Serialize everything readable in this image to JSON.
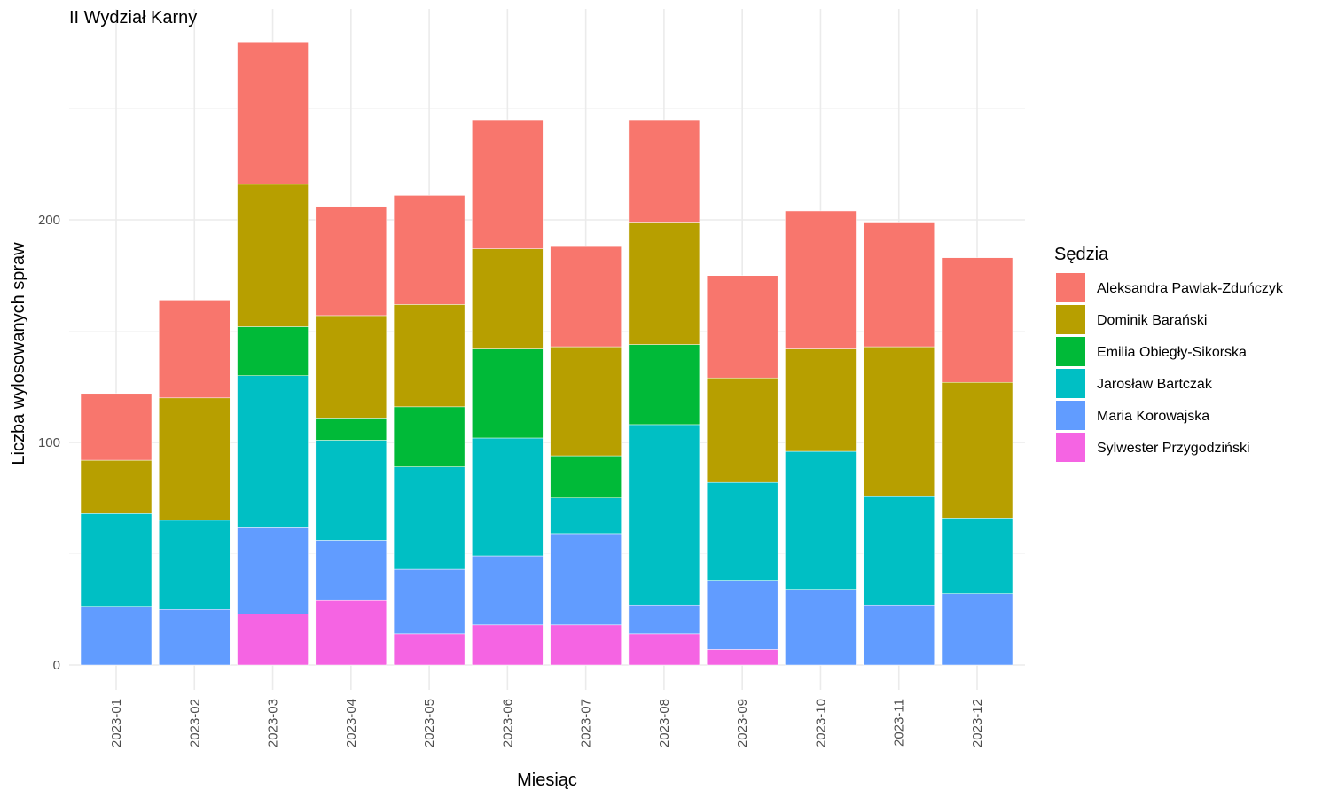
{
  "chart_data": {
    "type": "bar",
    "stacked": true,
    "title": "II Wydział Karny",
    "xlabel": "Miesiąc",
    "ylabel": "Liczba wylosowanych spraw",
    "ylim": [
      0,
      290
    ],
    "yticks": [
      0,
      100,
      200
    ],
    "grid": true,
    "legend_title": "Sędzia",
    "legend_position": "right",
    "categories": [
      "2023-01",
      "2023-02",
      "2023-03",
      "2023-04",
      "2023-05",
      "2023-06",
      "2023-07",
      "2023-08",
      "2023-09",
      "2023-10",
      "2023-11",
      "2023-12"
    ],
    "series": [
      {
        "name": "Sylwester Przygodziński",
        "color": "#F564E3",
        "values": [
          0,
          0,
          23,
          29,
          14,
          18,
          18,
          14,
          7,
          0,
          0,
          0
        ]
      },
      {
        "name": "Maria Korowajska",
        "color": "#619CFF",
        "values": [
          26,
          25,
          39,
          27,
          29,
          31,
          41,
          13,
          31,
          34,
          27,
          32
        ]
      },
      {
        "name": "Jarosław Bartczak",
        "color": "#00BFC4",
        "values": [
          42,
          40,
          68,
          45,
          46,
          53,
          16,
          81,
          44,
          62,
          49,
          34
        ]
      },
      {
        "name": "Emilia Obiegły-Sikorska",
        "color": "#00BA38",
        "values": [
          0,
          0,
          22,
          10,
          27,
          40,
          19,
          36,
          0,
          0,
          0,
          0
        ]
      },
      {
        "name": "Dominik Barański",
        "color": "#B79F00",
        "values": [
          24,
          55,
          64,
          46,
          46,
          45,
          49,
          55,
          47,
          46,
          67,
          61
        ]
      },
      {
        "name": "Aleksandra Pawlak-Zduńczyk",
        "color": "#F8766D",
        "values": [
          30,
          44,
          64,
          49,
          49,
          58,
          45,
          46,
          46,
          62,
          56,
          56
        ]
      }
    ],
    "legend_order": [
      "Aleksandra Pawlak-Zduńczyk",
      "Dominik Barański",
      "Emilia Obiegły-Sikorska",
      "Jarosław Bartczak",
      "Maria Korowajska",
      "Sylwester Przygodziński"
    ]
  }
}
